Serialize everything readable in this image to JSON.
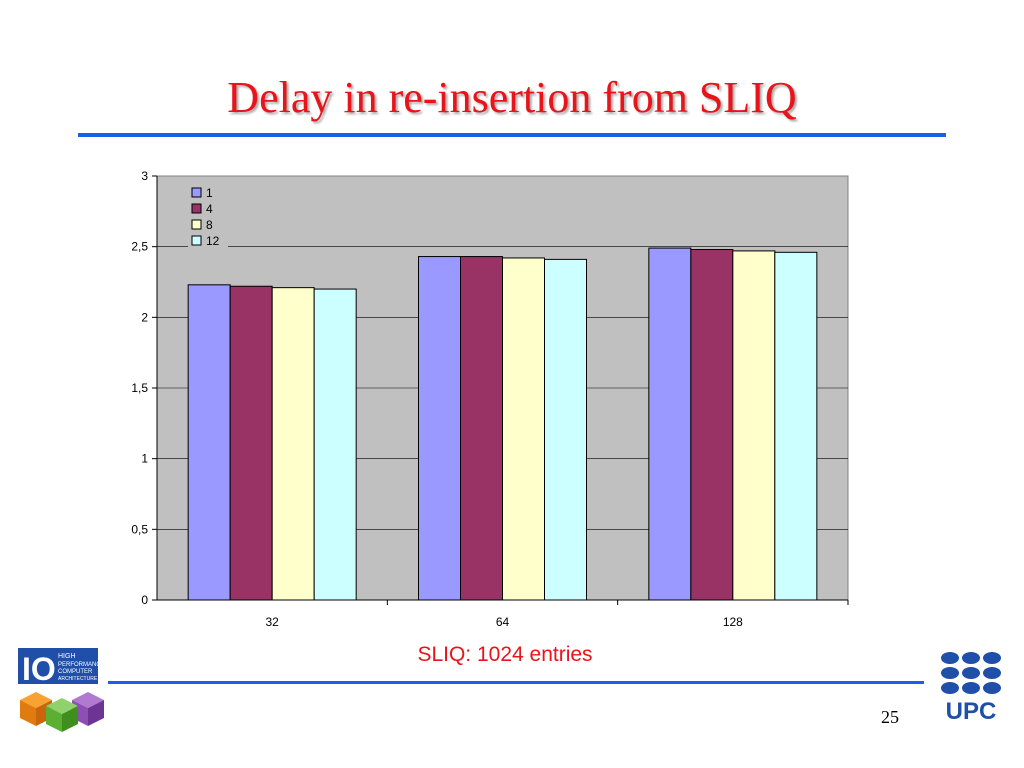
{
  "slide": {
    "title": "Delay in re-insertion from SLIQ",
    "caption": "SLIQ: 1024 entries",
    "page_number": "25"
  },
  "logos": {
    "left": {
      "name": "hpca-logo",
      "text": [
        "IO",
        "HIGH",
        "PERFORMANCE",
        "COMPUTER",
        "ARCHITECTURE"
      ]
    },
    "right": {
      "name": "upc-logo",
      "text": "UPC"
    }
  },
  "colors": {
    "title": "#e8141a",
    "rule": "#1a5fe8",
    "plot_bg": "#c0c0c0",
    "series": [
      "#9999ff",
      "#993366",
      "#ffffcc",
      "#ccffff"
    ]
  },
  "chart_data": {
    "type": "bar",
    "categories": [
      "32",
      "64",
      "128"
    ],
    "series": [
      {
        "name": "1",
        "values": [
          2.23,
          2.43,
          2.49
        ]
      },
      {
        "name": "4",
        "values": [
          2.22,
          2.43,
          2.48
        ]
      },
      {
        "name": "8",
        "values": [
          2.21,
          2.42,
          2.47
        ]
      },
      {
        "name": "12",
        "values": [
          2.2,
          2.41,
          2.46
        ]
      }
    ],
    "ylim": [
      0,
      3
    ],
    "yticks": [
      "0",
      "0,5",
      "1",
      "1,5",
      "2",
      "2,5",
      "3"
    ],
    "grid": true,
    "legend": "top-left"
  }
}
